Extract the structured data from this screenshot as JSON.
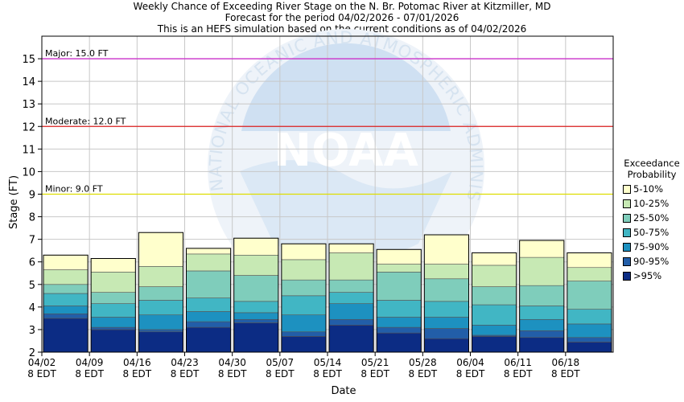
{
  "header": {
    "line1": "Weekly Chance of Exceeding River Stage on the N. Br. Potomac River at Kitzmiller, MD",
    "line2": "Forecast for the period 04/02/2026 - 07/01/2026",
    "line3": "This is an HEFS simulation based on the current conditions as of 04/02/2026"
  },
  "watermark": {
    "logo_text": "NOAA",
    "ring_text": "NATIONAL OCEANIC AND ATMOSPHERIC ADMINISTRATION"
  },
  "legend": {
    "title_line1": "Exceedance",
    "title_line2": "Probability",
    "items": [
      {
        "label": "5-10%",
        "color": "#ffffcc"
      },
      {
        "label": "10-25%",
        "color": "#c7e9b4"
      },
      {
        "label": "25-50%",
        "color": "#7fcdbb"
      },
      {
        "label": "50-75%",
        "color": "#41b6c4"
      },
      {
        "label": "75-90%",
        "color": "#1d91c0"
      },
      {
        "label": "90-95%",
        "color": "#225ea8"
      },
      {
        "label": ">95%",
        "color": "#0c2c84"
      }
    ]
  },
  "chart_data": {
    "type": "bar",
    "stacked": true,
    "xlabel": "Date",
    "ylabel": "Stage (FT)",
    "ylim": [
      2,
      16
    ],
    "yticks": [
      2,
      3,
      4,
      5,
      6,
      7,
      8,
      9,
      10,
      11,
      12,
      13,
      14,
      15
    ],
    "grid": true,
    "legend_position": "right",
    "x_tick_labels": [
      {
        "date": "04/02",
        "time": "8 EDT"
      },
      {
        "date": "04/09",
        "time": "8 EDT"
      },
      {
        "date": "04/16",
        "time": "8 EDT"
      },
      {
        "date": "04/23",
        "time": "8 EDT"
      },
      {
        "date": "04/30",
        "time": "8 EDT"
      },
      {
        "date": "05/07",
        "time": "8 EDT"
      },
      {
        "date": "05/14",
        "time": "8 EDT"
      },
      {
        "date": "05/21",
        "time": "8 EDT"
      },
      {
        "date": "05/28",
        "time": "8 EDT"
      },
      {
        "date": "06/04",
        "time": "8 EDT"
      },
      {
        "date": "06/11",
        "time": "8 EDT"
      },
      {
        "date": "06/18",
        "time": "8 EDT"
      }
    ],
    "thresholds": [
      {
        "label": "Major: 15.0 FT",
        "value": 15.0,
        "color": "#cc33cc"
      },
      {
        "label": "Moderate: 12.0 FT",
        "value": 12.0,
        "color": "#dd2222"
      },
      {
        "label": "Minor: 9.0 FT",
        "value": 9.0,
        "color": "#dddd00"
      }
    ],
    "series_order": [
      ">95%",
      "90-95%",
      "75-90%",
      "50-75%",
      "25-50%",
      "10-25%",
      "5-10%"
    ],
    "bars": [
      {
        "week": "04/02",
        "levels": [
          3.5,
          3.7,
          4.05,
          4.6,
          5.0,
          5.65,
          6.3
        ]
      },
      {
        "week": "04/09",
        "levels": [
          3.0,
          3.1,
          3.55,
          4.15,
          4.65,
          5.55,
          6.15
        ]
      },
      {
        "week": "04/16",
        "levels": [
          2.9,
          3.0,
          3.65,
          4.3,
          4.9,
          5.8,
          7.3
        ]
      },
      {
        "week": "04/23",
        "levels": [
          3.1,
          3.35,
          3.8,
          4.4,
          5.6,
          6.35,
          6.6
        ]
      },
      {
        "week": "04/30",
        "levels": [
          3.3,
          3.45,
          3.75,
          4.25,
          5.4,
          6.3,
          7.05
        ]
      },
      {
        "week": "05/07",
        "levels": [
          2.7,
          2.9,
          3.65,
          4.5,
          5.2,
          6.1,
          6.8
        ]
      },
      {
        "week": "05/14",
        "levels": [
          3.2,
          3.45,
          4.15,
          4.65,
          5.2,
          6.4,
          6.8
        ]
      },
      {
        "week": "05/21",
        "levels": [
          2.85,
          3.1,
          3.55,
          4.3,
          5.55,
          5.9,
          6.55
        ]
      },
      {
        "week": "05/28",
        "levels": [
          2.6,
          3.05,
          3.55,
          4.25,
          5.25,
          5.9,
          7.2
        ]
      },
      {
        "week": "06/04",
        "levels": [
          2.7,
          2.75,
          3.2,
          4.1,
          4.9,
          5.85,
          6.4
        ]
      },
      {
        "week": "06/11",
        "levels": [
          2.65,
          2.95,
          3.45,
          4.05,
          4.95,
          6.2,
          6.95
        ]
      },
      {
        "week": "06/18",
        "levels": [
          2.45,
          2.65,
          3.25,
          3.9,
          5.15,
          5.75,
          6.4
        ]
      }
    ]
  }
}
